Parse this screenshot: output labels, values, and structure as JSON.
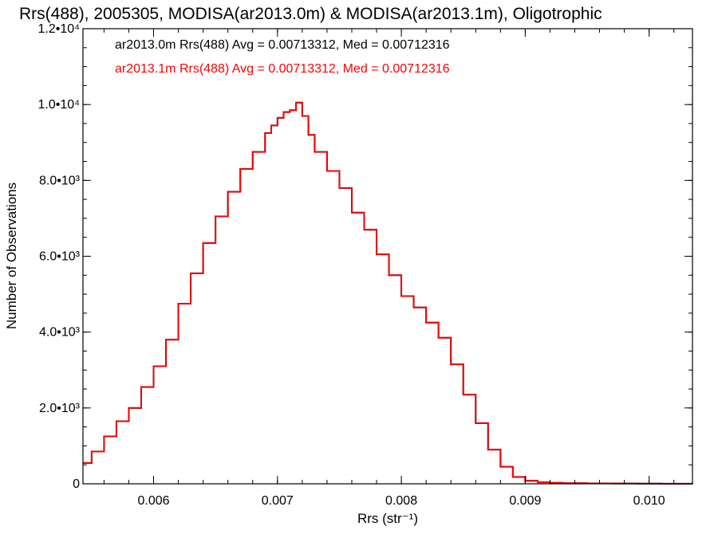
{
  "chart_data": {
    "type": "line",
    "title": "Rrs(488), 2005305, MODISA(ar2013.0m) & MODISA(ar2013.1m), Oligotrophic",
    "xlabel": "Rrs (str⁻¹)",
    "ylabel": "Number of Observations",
    "xlim": [
      0.00543,
      0.01035
    ],
    "ylim": [
      0,
      12000
    ],
    "x_ticks": [
      {
        "value": 0.006,
        "label": "0.006"
      },
      {
        "value": 0.007,
        "label": "0.007"
      },
      {
        "value": 0.008,
        "label": "0.008"
      },
      {
        "value": 0.009,
        "label": "0.009"
      },
      {
        "value": 0.01,
        "label": "0.010"
      }
    ],
    "y_ticks": [
      {
        "value": 0,
        "label": "0"
      },
      {
        "value": 2000,
        "label": "2.0•10³"
      },
      {
        "value": 4000,
        "label": "4.0•10³"
      },
      {
        "value": 6000,
        "label": "6.0•10³"
      },
      {
        "value": 8000,
        "label": "8.0•10³"
      },
      {
        "value": 10000,
        "label": "1.0•10⁴"
      },
      {
        "value": 12000,
        "label": "1.2•10⁴"
      }
    ],
    "grid": false,
    "legend_position": "top-left",
    "series": [
      {
        "name": "ar2013.0m Rrs(488) Avg = 0.00713312, Med = 0.00712316",
        "color": "#000000",
        "x": [
          0.00543,
          0.0055,
          0.0056,
          0.0057,
          0.0058,
          0.0059,
          0.006,
          0.0061,
          0.0062,
          0.0063,
          0.0064,
          0.0065,
          0.0066,
          0.0067,
          0.0068,
          0.0069,
          0.00695,
          0.007,
          0.00705,
          0.0071,
          0.00715,
          0.0072,
          0.00725,
          0.0073,
          0.0074,
          0.0075,
          0.0076,
          0.0077,
          0.0078,
          0.0079,
          0.008,
          0.0081,
          0.0082,
          0.0083,
          0.0084,
          0.0085,
          0.0086,
          0.0087,
          0.0088,
          0.0089,
          0.009,
          0.0091,
          0.0092,
          0.0093,
          0.0095,
          0.0097,
          0.0099,
          0.0101,
          0.01035
        ],
        "y": [
          550,
          850,
          1250,
          1650,
          2000,
          2550,
          3100,
          3800,
          4750,
          5550,
          6350,
          7050,
          7700,
          8300,
          8750,
          9250,
          9450,
          9650,
          9800,
          9850,
          10050,
          9700,
          9200,
          8750,
          8250,
          7800,
          7150,
          6700,
          6050,
          5500,
          4950,
          4650,
          4250,
          3850,
          3150,
          2350,
          1600,
          900,
          450,
          180,
          80,
          40,
          25,
          15,
          10,
          8,
          5,
          3,
          2
        ]
      },
      {
        "name": "ar2013.1m Rrs(488) Avg = 0.00713312, Med = 0.00712316",
        "color": "#ff0000",
        "x": [
          0.00543,
          0.0055,
          0.0056,
          0.0057,
          0.0058,
          0.0059,
          0.006,
          0.0061,
          0.0062,
          0.0063,
          0.0064,
          0.0065,
          0.0066,
          0.0067,
          0.0068,
          0.0069,
          0.00695,
          0.007,
          0.00705,
          0.0071,
          0.00715,
          0.0072,
          0.00725,
          0.0073,
          0.0074,
          0.0075,
          0.0076,
          0.0077,
          0.0078,
          0.0079,
          0.008,
          0.0081,
          0.0082,
          0.0083,
          0.0084,
          0.0085,
          0.0086,
          0.0087,
          0.0088,
          0.0089,
          0.009,
          0.0091,
          0.0092,
          0.0093,
          0.0095,
          0.0097,
          0.0099,
          0.0101,
          0.01035
        ],
        "y": [
          550,
          850,
          1250,
          1650,
          2000,
          2550,
          3100,
          3800,
          4750,
          5550,
          6350,
          7050,
          7700,
          8300,
          8750,
          9250,
          9450,
          9650,
          9800,
          9850,
          10050,
          9700,
          9200,
          8750,
          8250,
          7800,
          7150,
          6700,
          6050,
          5500,
          4950,
          4650,
          4250,
          3850,
          3150,
          2350,
          1600,
          900,
          450,
          180,
          80,
          40,
          25,
          15,
          10,
          8,
          5,
          3,
          2
        ]
      }
    ]
  }
}
